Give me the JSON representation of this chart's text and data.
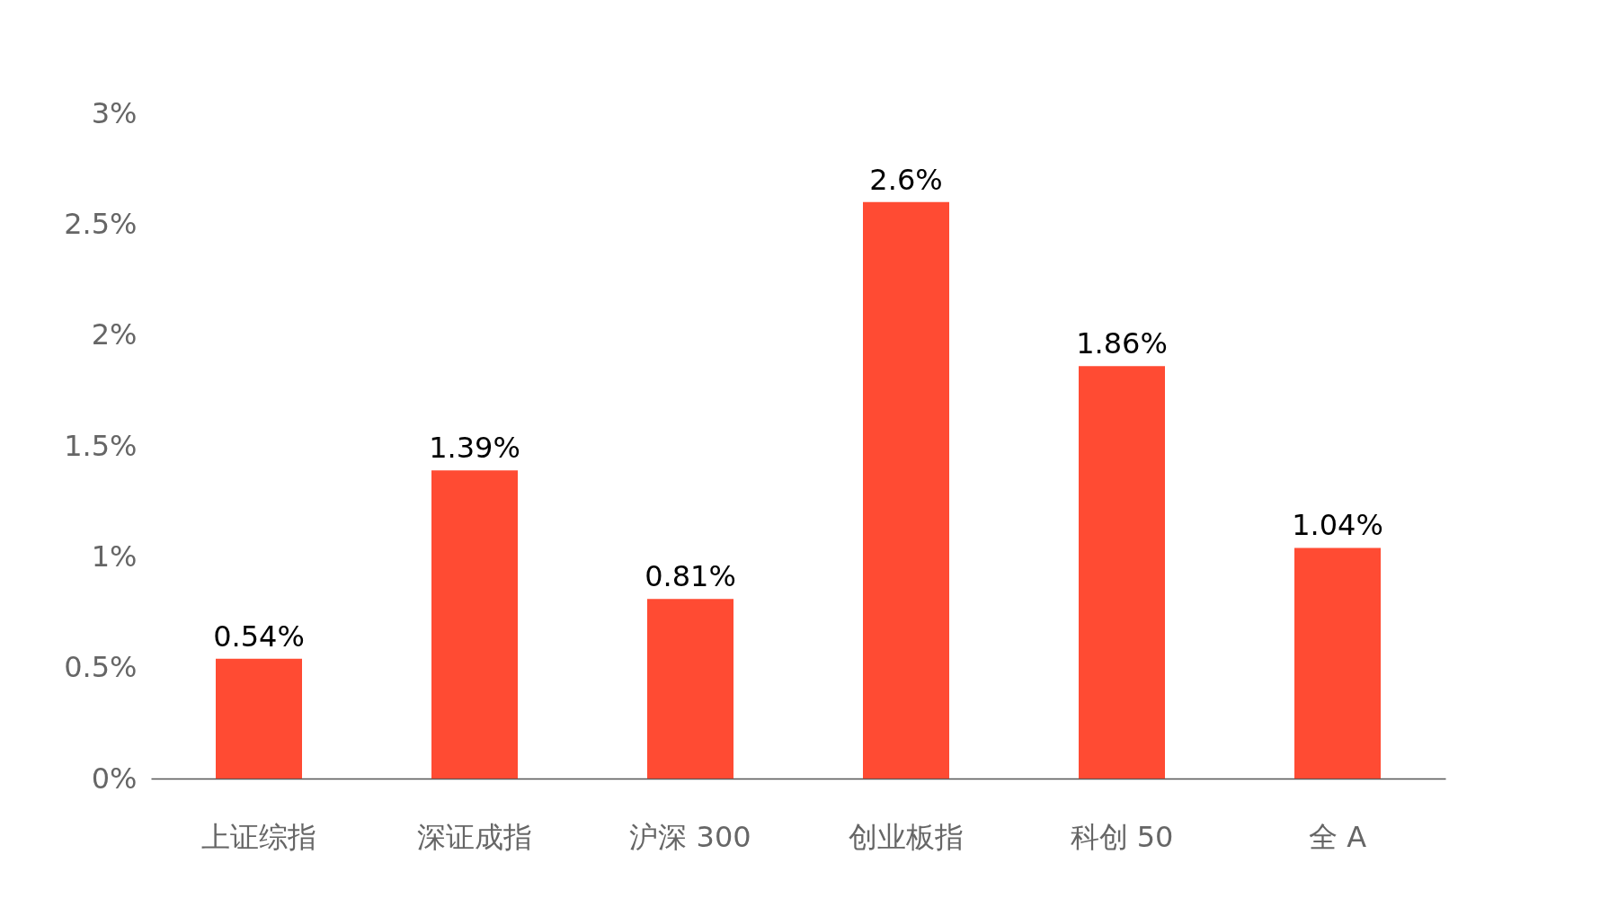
{
  "chart_data": {
    "type": "bar",
    "categories": [
      "上证综指",
      "深证成指",
      "沪深 300",
      "创业板指",
      "科创 50",
      "全 A"
    ],
    "values": [
      0.54,
      1.39,
      0.81,
      2.6,
      1.86,
      1.04
    ],
    "value_labels": [
      "0.54%",
      "1.39%",
      "0.81%",
      "2.6%",
      "1.86%",
      "1.04%"
    ],
    "color": "#ff4b33",
    "ylim": [
      0,
      3
    ],
    "yticks": [
      {
        "value": 0,
        "label": "0%"
      },
      {
        "value": 0.5,
        "label": "0.5%"
      },
      {
        "value": 1,
        "label": "1%"
      },
      {
        "value": 1.5,
        "label": "1.5%"
      },
      {
        "value": 2,
        "label": "2%"
      },
      {
        "value": 2.5,
        "label": "2.5%"
      },
      {
        "value": 3,
        "label": "3%"
      }
    ],
    "grid": false
  }
}
